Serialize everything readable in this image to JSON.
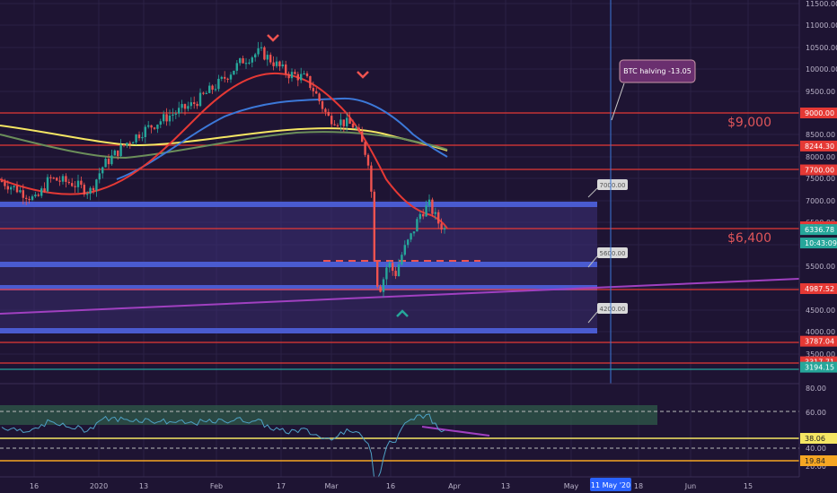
{
  "chart_data": {
    "type": "candlestick",
    "price_ticks": [
      "11500.00",
      "11000.00",
      "10500.00",
      "10000.00",
      "9500.00",
      "9000.00",
      "8500.00",
      "8000.00",
      "7500.00",
      "7000.00",
      "6500.00",
      "6000.00",
      "5500.00",
      "5000.00",
      "4500.00",
      "4000.00",
      "3500.00"
    ],
    "rsi_ticks": [
      "80.00",
      "60.00",
      "40.00",
      "20.00"
    ],
    "x_ticks": [
      "16",
      "2020",
      "13",
      "Feb",
      "17",
      "Mar",
      "16",
      "Apr",
      "13",
      "May",
      "18",
      "Jun",
      "15"
    ],
    "price_badges": [
      {
        "value": "9000.00",
        "color": "#e53935"
      },
      {
        "value": "8244.30",
        "color": "#e53935"
      },
      {
        "value": "7700.00",
        "color": "#e53935"
      },
      {
        "value": "6400.00",
        "color": "#e53935"
      },
      {
        "value": "6336.78",
        "color": "#26a69a"
      },
      {
        "value": "10:43:09",
        "color": "#26a69a"
      },
      {
        "value": "4987.52",
        "color": "#e53935"
      },
      {
        "value": "3787.04",
        "color": "#e53935"
      },
      {
        "value": "3317.71",
        "color": "#e53935"
      },
      {
        "value": "3194.15",
        "color": "#26a69a"
      }
    ],
    "rsi_badges": [
      {
        "value": "38.06",
        "color": "#f5e663",
        "text_color": "#222"
      },
      {
        "value": "19.84",
        "color": "#f5a623",
        "text_color": "#222"
      }
    ],
    "date_badge": "11 May '20",
    "levels_big": [
      "$9,000",
      "$6,400"
    ],
    "zone_labels": [
      "7000.00",
      "5600.00",
      "4200.00"
    ],
    "annotation": "BTC halving -13.05",
    "colors": {
      "up": "#26a69a",
      "down": "#ef5350",
      "ma_red": "#e53935",
      "ma_blue": "#3c78d8",
      "ma_yellow": "#f5e663",
      "ma_green": "#6b8e5a",
      "trend": "#a040c0",
      "zone": "#4a5bd0",
      "rsi": "#4fa3c7"
    }
  }
}
